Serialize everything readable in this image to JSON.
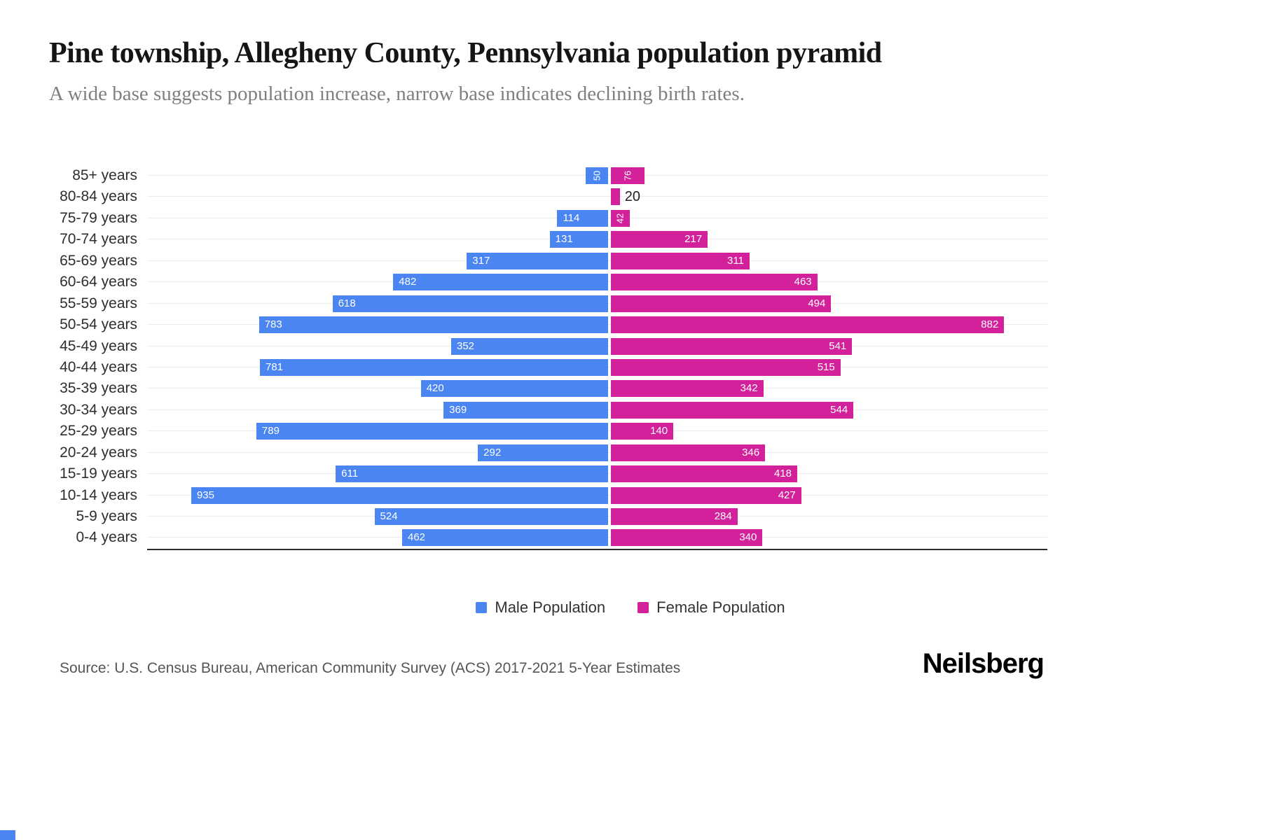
{
  "header": {
    "title": "Pine township, Allegheny County, Pennsylvania population pyramid",
    "subtitle": "A wide base suggests population increase, narrow base indicates declining birth rates."
  },
  "chart_data": {
    "type": "bar",
    "variant": "population-pyramid",
    "orientation": "horizontal",
    "grid": "horizontal-light",
    "legend_position": "bottom",
    "value_axis_per_side_max": 1000,
    "categories": [
      "85+ years",
      "80-84 years",
      "75-79 years",
      "70-74 years",
      "65-69 years",
      "60-64 years",
      "55-59 years",
      "50-54 years",
      "45-49 years",
      "40-44 years",
      "35-39 years",
      "30-34 years",
      "25-29 years",
      "20-24 years",
      "15-19 years",
      "10-14 years",
      "5-9 years",
      "0-4 years"
    ],
    "series": [
      {
        "name": "Male Population",
        "color": "#4A85F2",
        "direction": "left",
        "values": [
          50,
          0,
          114,
          131,
          317,
          482,
          618,
          783,
          352,
          781,
          420,
          369,
          789,
          292,
          611,
          935,
          524,
          462
        ]
      },
      {
        "name": "Female Population",
        "color": "#D3219C",
        "direction": "right",
        "values": [
          76,
          20,
          42,
          217,
          311,
          463,
          494,
          882,
          541,
          515,
          342,
          544,
          140,
          346,
          418,
          427,
          284,
          340
        ]
      }
    ]
  },
  "footer": {
    "source": "Source: U.S. Census Bureau, American Community Survey (ACS) 2017-2021 5-Year Estimates",
    "brand": "Neilsberg"
  }
}
